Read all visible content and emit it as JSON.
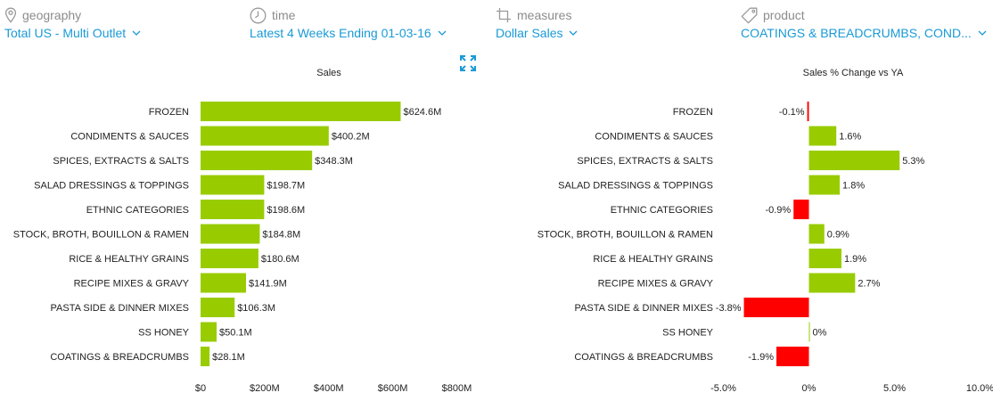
{
  "filters": {
    "geography": {
      "label": "geography",
      "value": "Total US - Multi Outlet",
      "icon": "location-pin-icon"
    },
    "time": {
      "label": "time",
      "value": "Latest 4 Weeks Ending 01-03-16",
      "icon": "clock-icon"
    },
    "measures": {
      "label": "measures",
      "value": "Dollar Sales",
      "icon": "crop-icon"
    },
    "product": {
      "label": "product",
      "value": "COATINGS & BREADCRUMBS, COND...",
      "icon": "tag-icon"
    }
  },
  "colors": {
    "accent": "#1a9ad6",
    "positive": "#99cc00",
    "negative": "#ff0000",
    "muted": "#8c8c8c"
  },
  "chart_data": [
    {
      "type": "bar",
      "orientation": "horizontal",
      "title": "Sales",
      "categories": [
        "FROZEN",
        "CONDIMENTS & SAUCES",
        "SPICES, EXTRACTS & SALTS",
        "SALAD DRESSINGS & TOPPINGS",
        "ETHNIC CATEGORIES",
        "STOCK, BROTH, BOUILLON & RAMEN",
        "RICE & HEALTHY GRAINS",
        "RECIPE MIXES & GRAVY",
        "PASTA SIDE & DINNER MIXES",
        "SS HONEY",
        "COATINGS & BREADCRUMBS"
      ],
      "values": [
        624.6,
        400.2,
        348.3,
        198.7,
        198.6,
        184.8,
        180.6,
        141.9,
        106.3,
        50.1,
        28.1
      ],
      "value_labels": [
        "$624.6M",
        "$400.2M",
        "$348.3M",
        "$198.7M",
        "$198.6M",
        "$184.8M",
        "$180.6M",
        "$141.9M",
        "$106.3M",
        "$50.1M",
        "$28.1M"
      ],
      "unit": "$M",
      "xlim": [
        0,
        800
      ],
      "xticks": [
        0,
        200,
        400,
        600,
        800
      ],
      "xtick_labels": [
        "$0",
        "$200M",
        "$400M",
        "$600M",
        "$800M"
      ],
      "grid": false,
      "legend": false
    },
    {
      "type": "bar",
      "orientation": "horizontal",
      "title": "Sales % Change vs YA",
      "categories": [
        "FROZEN",
        "CONDIMENTS & SAUCES",
        "SPICES, EXTRACTS & SALTS",
        "SALAD DRESSINGS & TOPPINGS",
        "ETHNIC CATEGORIES",
        "STOCK, BROTH, BOUILLON & RAMEN",
        "RICE & HEALTHY GRAINS",
        "RECIPE MIXES & GRAVY",
        "PASTA SIDE & DINNER MIXES",
        "SS HONEY",
        "COATINGS & BREADCRUMBS"
      ],
      "values": [
        -0.1,
        1.6,
        5.3,
        1.8,
        -0.9,
        0.9,
        1.9,
        2.7,
        -3.8,
        0,
        -1.9
      ],
      "value_labels": [
        "-0.1%",
        "1.6%",
        "5.3%",
        "1.8%",
        "-0.9%",
        "0.9%",
        "1.9%",
        "2.7%",
        "-3.8%",
        "0%",
        "-1.9%"
      ],
      "unit": "%",
      "xlim": [
        -5,
        10
      ],
      "xticks": [
        -5,
        0,
        5,
        10
      ],
      "xtick_labels": [
        "-5.0%",
        "0%",
        "5.0%",
        "10.0%"
      ],
      "grid": false,
      "legend": false
    }
  ]
}
